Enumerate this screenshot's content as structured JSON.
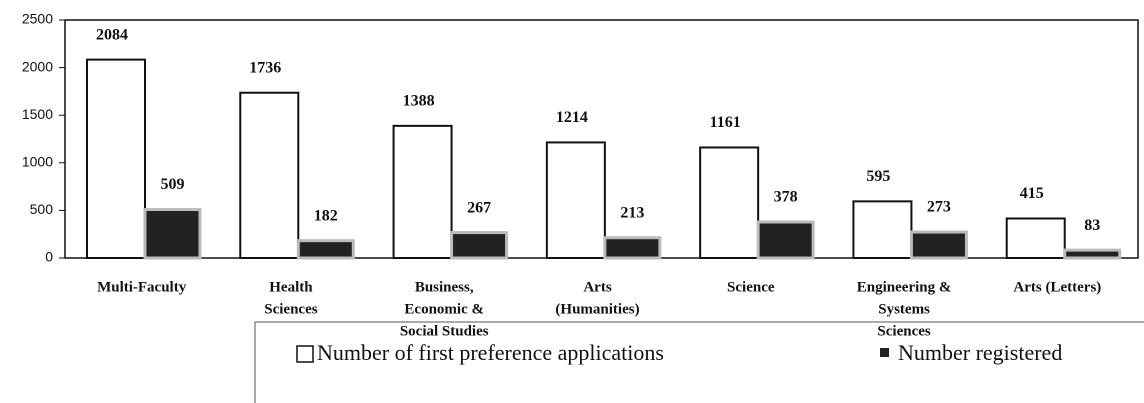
{
  "chart_data": {
    "type": "bar",
    "categories": [
      [
        "Multi-Faculty"
      ],
      [
        "Health",
        "Sciences"
      ],
      [
        "Business,",
        "Economic &",
        "Social Studies"
      ],
      [
        "Arts",
        "(Humanities)"
      ],
      [
        "Science"
      ],
      [
        "Engineering &",
        "Systems",
        "Sciences"
      ],
      [
        "Arts (Letters)"
      ]
    ],
    "series": [
      {
        "name": "Number of first preference applications",
        "color": "#ffffff",
        "values": [
          2084,
          1736,
          1388,
          1214,
          1161,
          595,
          415
        ]
      },
      {
        "name": "Number registered",
        "color": "#222222",
        "values": [
          509,
          182,
          267,
          213,
          378,
          273,
          83
        ]
      }
    ],
    "ylim": [
      0,
      2500
    ],
    "yticks": [
      0,
      500,
      1000,
      1500,
      2000,
      2500
    ],
    "grid": false
  }
}
